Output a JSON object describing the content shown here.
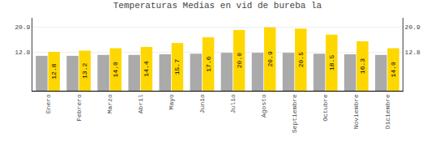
{
  "chart_data": {
    "type": "bar",
    "title": "Temperaturas Medias en vid de bureba la",
    "categories": [
      "Enero",
      "Febrero",
      "Marzo",
      "Abril",
      "Mayo",
      "Junio",
      "Julio",
      "Agosto",
      "Septiembre",
      "Octubre",
      "Noviembre",
      "Diciembre"
    ],
    "series": [
      {
        "color": "#AAAAAA",
        "values": [
          11.5,
          11.5,
          11.8,
          11.8,
          12.0,
          12.2,
          12.5,
          12.5,
          12.5,
          12.2,
          12.0,
          11.8
        ]
      },
      {
        "color": "#FFD700",
        "values": [
          12.8,
          13.2,
          14.0,
          14.4,
          15.7,
          17.6,
          20.0,
          20.9,
          20.5,
          18.5,
          16.3,
          14.0
        ],
        "value_labels": [
          "12.8",
          "13.2",
          "14.0",
          "14.4",
          "15.7",
          "17.6",
          "20.0",
          "20.9",
          "20.5",
          "18.5",
          "16.3",
          "14.0"
        ],
        "data_labels": true
      }
    ],
    "ylim": [
      0,
      24.0
    ],
    "yticks": [
      12.8,
      20.9
    ],
    "y2lim": [
      0,
      24.0
    ],
    "y2ticks": [
      12.8,
      20.9
    ],
    "grid": true
  }
}
